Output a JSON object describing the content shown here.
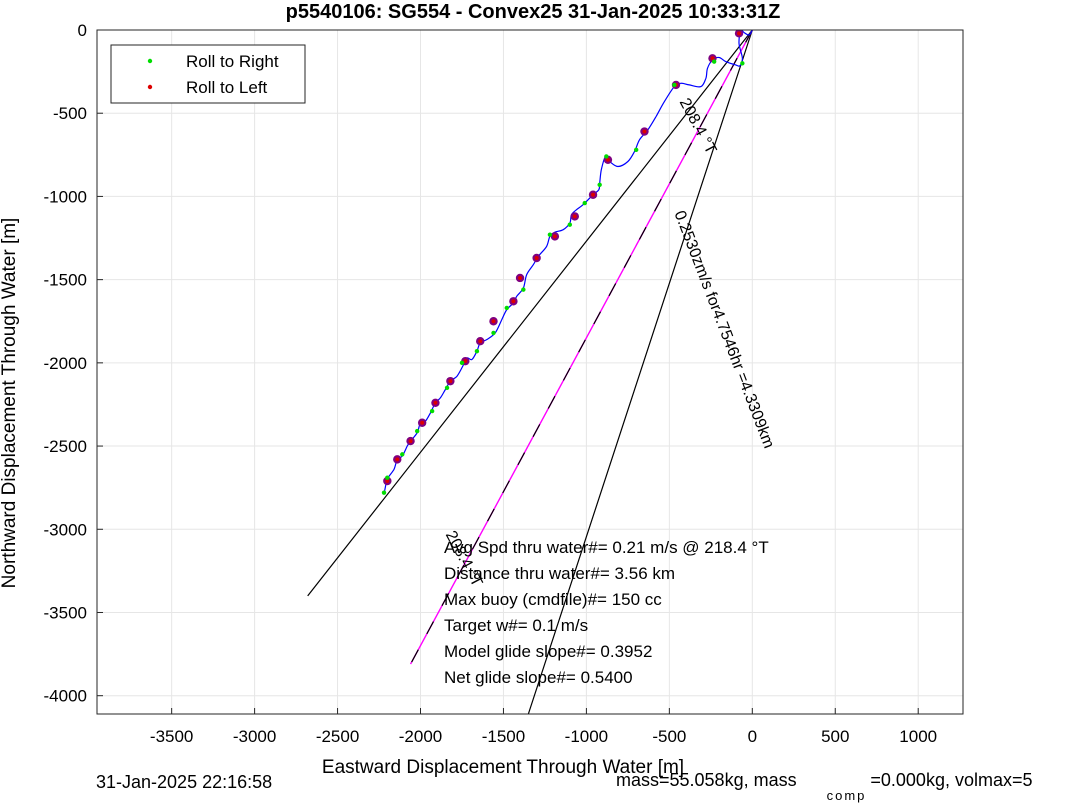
{
  "chart_data": {
    "type": "line",
    "title": "p5540106: SG554 - Convex25 31-Jan-2025 10:33:31Z",
    "xlabel": "Eastward Displacement Through Water [m]",
    "ylabel": "Northward Displacement Through Water [m]",
    "xlim": [
      -3950,
      1270
    ],
    "ylim": [
      -4110,
      0
    ],
    "xticks": [
      -3500,
      -3000,
      -2500,
      -2000,
      -1500,
      -1000,
      -500,
      0,
      500,
      1000
    ],
    "yticks": [
      0,
      -500,
      -1000,
      -1500,
      -2000,
      -2500,
      -3000,
      -3500,
      -4000
    ],
    "grid": true,
    "legend": {
      "placement": "top-left",
      "entries": [
        {
          "label": "Roll to Right",
          "color": "#00dd00"
        },
        {
          "label": "Roll to Left",
          "color": "#dd0000"
        }
      ]
    },
    "colors": {
      "track": "#0000ff",
      "right_marker": "#00dd00",
      "left_marker": "#dd0000",
      "overlay_marker": "#800080",
      "current_line": "#ff00ff",
      "heading_lines": "#000000"
    },
    "track": [
      [
        0,
        0
      ],
      [
        -20,
        -30
      ],
      [
        -50,
        -15
      ],
      [
        -70,
        0
      ],
      [
        -80,
        -80
      ],
      [
        -60,
        -170
      ],
      [
        -75,
        -215
      ],
      [
        -100,
        -210
      ],
      [
        -160,
        -190
      ],
      [
        -200,
        -165
      ],
      [
        -240,
        -180
      ],
      [
        -270,
        -230
      ],
      [
        -280,
        -290
      ],
      [
        -310,
        -340
      ],
      [
        -380,
        -330
      ],
      [
        -430,
        -320
      ],
      [
        -470,
        -340
      ],
      [
        -530,
        -430
      ],
      [
        -580,
        -520
      ],
      [
        -630,
        -600
      ],
      [
        -680,
        -660
      ],
      [
        -710,
        -730
      ],
      [
        -750,
        -790
      ],
      [
        -810,
        -820
      ],
      [
        -860,
        -790
      ],
      [
        -885,
        -760
      ],
      [
        -910,
        -840
      ],
      [
        -920,
        -920
      ],
      [
        -925,
        -960
      ],
      [
        -960,
        -990
      ],
      [
        -1020,
        -1050
      ],
      [
        -1060,
        -1080
      ],
      [
        -1090,
        -1110
      ],
      [
        -1100,
        -1160
      ],
      [
        -1140,
        -1200
      ],
      [
        -1190,
        -1215
      ],
      [
        -1220,
        -1240
      ],
      [
        -1240,
        -1300
      ],
      [
        -1290,
        -1360
      ],
      [
        -1320,
        -1410
      ],
      [
        -1360,
        -1470
      ],
      [
        -1380,
        -1550
      ],
      [
        -1420,
        -1600
      ],
      [
        -1440,
        -1640
      ],
      [
        -1480,
        -1680
      ],
      [
        -1510,
        -1740
      ],
      [
        -1550,
        -1820
      ],
      [
        -1600,
        -1860
      ],
      [
        -1640,
        -1880
      ],
      [
        -1660,
        -1930
      ],
      [
        -1690,
        -1980
      ],
      [
        -1720,
        -1970
      ],
      [
        -1740,
        -2010
      ],
      [
        -1780,
        -2080
      ],
      [
        -1820,
        -2110
      ],
      [
        -1850,
        -2160
      ],
      [
        -1880,
        -2210
      ],
      [
        -1910,
        -2240
      ],
      [
        -1940,
        -2300
      ],
      [
        -1970,
        -2350
      ],
      [
        -2000,
        -2360
      ],
      [
        -2020,
        -2420
      ],
      [
        -2060,
        -2470
      ],
      [
        -2080,
        -2500
      ],
      [
        -2110,
        -2560
      ],
      [
        -2140,
        -2580
      ],
      [
        -2160,
        -2640
      ],
      [
        -2200,
        -2700
      ],
      [
        -2220,
        -2790
      ]
    ],
    "right_markers": [
      [
        -60,
        -200
      ],
      [
        -230,
        -190
      ],
      [
        -470,
        -330
      ],
      [
        -700,
        -720
      ],
      [
        -880,
        -760
      ],
      [
        -920,
        -930
      ],
      [
        -1010,
        -1040
      ],
      [
        -1100,
        -1170
      ],
      [
        -1220,
        -1230
      ],
      [
        -1380,
        -1560
      ],
      [
        -1480,
        -1670
      ],
      [
        -1560,
        -1820
      ],
      [
        -1660,
        -1930
      ],
      [
        -1750,
        -2000
      ],
      [
        -1840,
        -2150
      ],
      [
        -1930,
        -2290
      ],
      [
        -2020,
        -2410
      ],
      [
        -2110,
        -2550
      ],
      [
        -2200,
        -2690
      ],
      [
        -2220,
        -2780
      ]
    ],
    "left_markers": [
      [
        -80,
        -20
      ],
      [
        -240,
        -170
      ],
      [
        -460,
        -330
      ],
      [
        -650,
        -610
      ],
      [
        -870,
        -780
      ],
      [
        -960,
        -990
      ],
      [
        -1070,
        -1120
      ],
      [
        -1190,
        -1240
      ],
      [
        -1300,
        -1370
      ],
      [
        -1400,
        -1490
      ],
      [
        -1440,
        -1630
      ],
      [
        -1560,
        -1750
      ],
      [
        -1640,
        -1870
      ],
      [
        -1730,
        -1990
      ],
      [
        -1820,
        -2110
      ],
      [
        -1910,
        -2240
      ],
      [
        -1990,
        -2360
      ],
      [
        -2060,
        -2470
      ],
      [
        -2140,
        -2580
      ],
      [
        -2200,
        -2710
      ]
    ],
    "heading_lines": [
      {
        "from": [
          0,
          0
        ],
        "to": [
          -2680,
          -3400
        ]
      },
      {
        "from": [
          0,
          0
        ],
        "to": [
          -1350,
          -4110
        ]
      }
    ],
    "current_line": {
      "from": [
        0,
        0
      ],
      "to": [
        -2060,
        -3810
      ]
    },
    "annotations": [
      {
        "text": "208.4 °T",
        "x": -440,
        "y": -430,
        "rotation": 62
      },
      {
        "text": "0.2530zm/s for4.7546hr =4.3309km",
        "x": -470,
        "y": -1100,
        "rotation": 69
      },
      {
        "text": "208.4 °T",
        "x": -1850,
        "y": -3030,
        "rotation": 62
      }
    ],
    "stats_text": [
      "Avg Spd thru water#=  0.21 m/s @ 218.4        °T",
      "Distance thru water#=  3.56 km",
      "Max buoy (cmdfile)#= 150 cc",
      "Target w#= 0.1 m/s",
      "Model glide slope#= 0.3952",
      "Net glide slope#= 0.5400"
    ]
  },
  "footer": {
    "timestamp": "31-Jan-2025 22:16:58",
    "mass_text": "mass=55.058kg, mass",
    "mass_subscript": "comp",
    "mass_rest": "=0.000kg, volmax=5"
  }
}
